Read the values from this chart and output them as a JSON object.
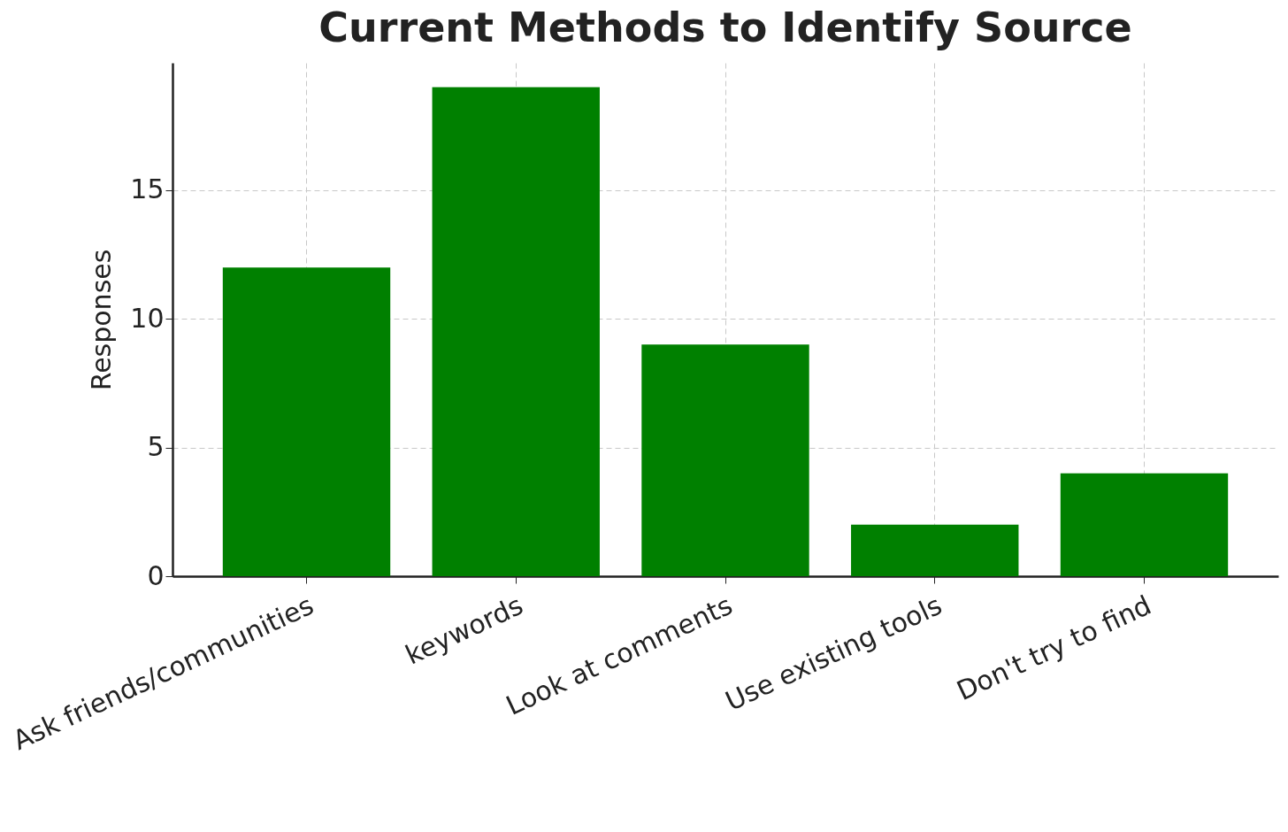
{
  "chart_data": {
    "type": "bar",
    "title": "Current Methods to Identify Source",
    "ylabel": "Responses",
    "categories": [
      "Ask friends/communities",
      "keywords",
      "Look at comments",
      "Use existing tools",
      "Don't try to find"
    ],
    "values": [
      12,
      19,
      9,
      2,
      4
    ],
    "color": "#008000",
    "ylim": [
      0,
      19.95
    ],
    "yticks": [
      0,
      5,
      10,
      15
    ],
    "grid": true
  }
}
